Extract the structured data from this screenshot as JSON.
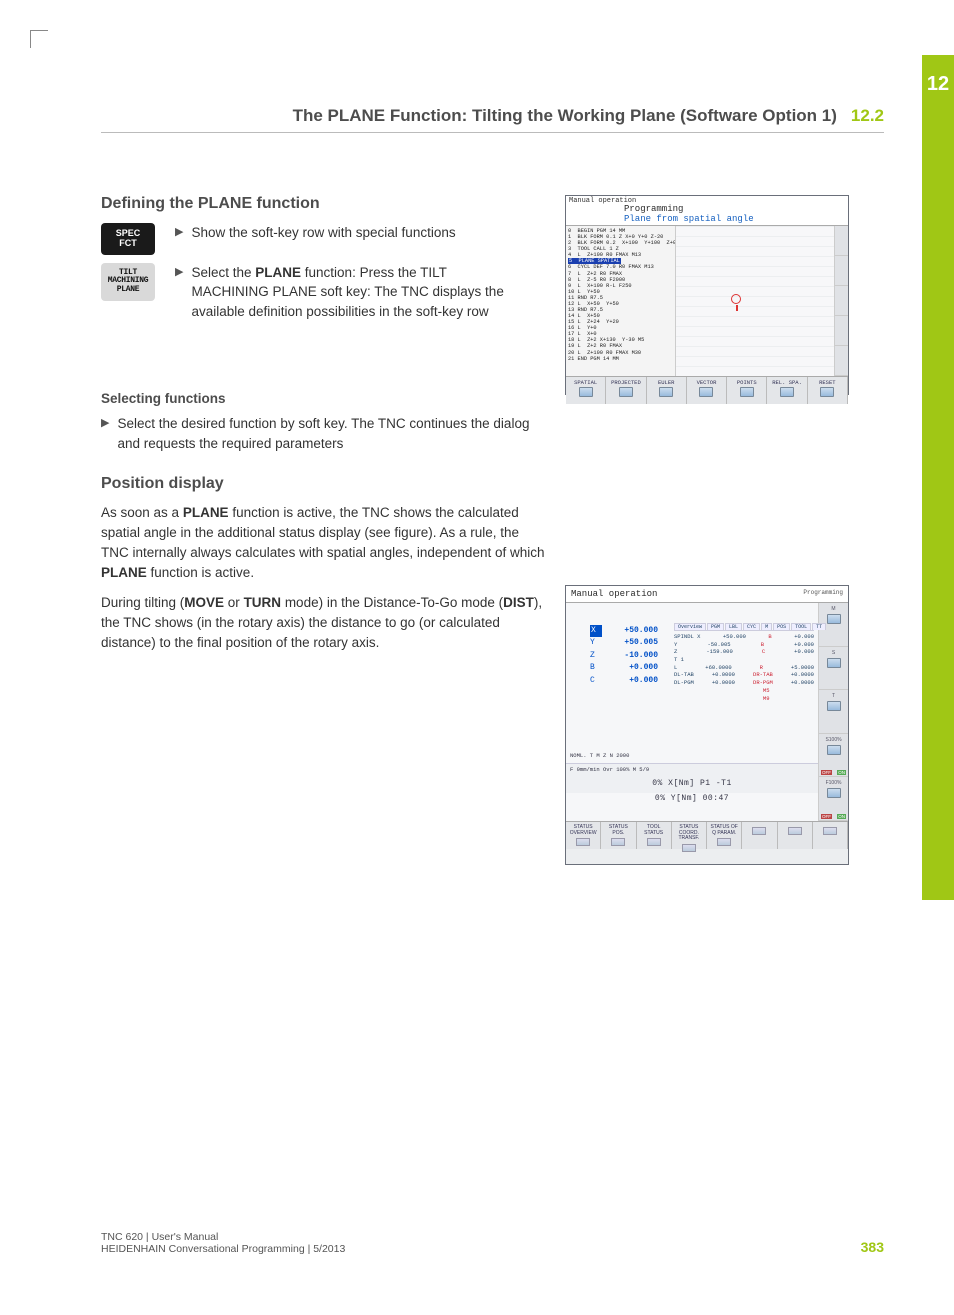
{
  "chapter_number": "12",
  "header_title": "The PLANE Function: Tilting the Working Plane (Software Option 1)",
  "header_section": "12.2",
  "section_defining": "Defining the PLANE function",
  "key_spec": "SPEC\nFCT",
  "key_tilt": "TILT\nMACHINING\nPLANE",
  "bullet_1": "Show the soft-key row with special functions",
  "bullet_2_pre": "Select the ",
  "bullet_2_b": "PLANE",
  "bullet_2_post": " function: Press the TILT MACHINING PLANE soft key: The TNC displays the available definition possibilities in the soft-key row",
  "subhead_selecting": "Selecting functions",
  "selecting_text": "Select the desired function by soft key. The TNC continues the dialog and requests the required parameters",
  "section_position": "Position display",
  "pos_p1_a": "As soon as a ",
  "pos_p1_b1": "PLANE",
  "pos_p1_c": " function is active, the TNC shows the calculated spatial angle in the additional status display (see figure). As a rule, the TNC internally always calculates with spatial angles, independent of which ",
  "pos_p1_b2": "PLANE",
  "pos_p1_d": " function is active.",
  "pos_p2_a": "During tilting (",
  "pos_p2_b1": "MOVE",
  "pos_p2_b": " or ",
  "pos_p2_b2": "TURN",
  "pos_p2_c": " mode) in the Distance-To-Go mode (",
  "pos_p2_b3": "DIST",
  "pos_p2_d": "), the TNC shows (in the rotary axis) the distance to go (or calculated distance) to the final position of the rotary axis.",
  "ss1": {
    "manual": "Manual operation",
    "prog": "Programming",
    "sub": "Plane from spatial angle",
    "code": "0  BEGIN PGM 14 MM\n1  BLK FORM 0.1 Z X+0 Y+0 Z-20\n2  BLK FORM 0.2  X+100  Y+100  Z+0\n3  TOOL CALL 1 Z\n4  L  Z+100 R0 FMAX M13\n",
    "code_hl": "5  PLANE SPATIAL",
    "code2": "6  CYCL DEF 7.0 R0 FMAX M13\n7  L  Z+2 R0 FMAX\n8  L  Z-5 R0 F2000\n9  L  X+100 R-L F250\n10 L  Y+50\n11 RND R7.5\n12 L  X+50  Y+50\n13 RND R7.5\n14 L  X+50\n15 L  Z+24  Y+20\n16 L  Y+0\n17 L  X+0\n18 L  Z+2 X+130  Y-30 M5\n19 L  Z+2 R0 FMAX\n20 L  Z+100 R0 FMAX M30\n21 END PGM 14 MM",
    "softkeys": [
      "SPATIAL",
      "PROJECTED",
      "EULER",
      "VECTOR",
      "POINTS",
      "REL. SPA.",
      "RESET"
    ]
  },
  "ss2": {
    "title": "Manual operation",
    "right": "Programming",
    "axes": [
      {
        "l": "X",
        "v": "+50.000",
        "hl": true
      },
      {
        "l": "Y",
        "v": "+50.005",
        "hl": false
      },
      {
        "l": "Z",
        "v": "-10.000",
        "hl": false
      },
      {
        "l": "B",
        "v": "+0.000",
        "hl": false
      },
      {
        "l": "C",
        "v": "+0.000",
        "hl": false
      }
    ],
    "tabs": [
      "Overview",
      "PGM",
      "LBL",
      "CYC",
      "M",
      "POS",
      "TOOL",
      "TT"
    ],
    "inforows": [
      [
        "SPINDL  X",
        "+50.000",
        "B",
        "+0.000"
      ],
      [
        "        Y",
        "-50.005",
        "B",
        "+0.000"
      ],
      [
        "        Z",
        "-159.000",
        "C",
        "+0.000"
      ],
      [
        "T    1",
        "",
        "",
        ""
      ],
      [
        "L",
        "+60.0000",
        "R",
        "+5.0000"
      ],
      [
        "DL-TAB",
        "+0.0000",
        "DR-TAB",
        "+0.0000"
      ],
      [
        "DL-PGM",
        "+0.0000",
        "DR-PGM",
        "+0.0000"
      ],
      [
        "",
        "",
        "M5",
        ""
      ],
      [
        "",
        "",
        "M9",
        ""
      ]
    ],
    "nom_line": "NOML.       T     M  Z  N  2000",
    "strip_line": "F   0mm/min   Ovr  100%   M 5/9",
    "big1": "0%  X[Nm]  P1   -T1",
    "big2": "0%  Y[Nm]  00:47",
    "side": [
      {
        "t": "M"
      },
      {
        "t": "S"
      },
      {
        "t": "T"
      },
      {
        "t": "S100%",
        "off": "OFF",
        "on": "ON"
      },
      {
        "t": "F100%",
        "off": "OFF",
        "on": "ON"
      }
    ],
    "softkeys": [
      "STATUS\nOVERVIEW",
      "STATUS\nPOS.",
      "TOOL\nSTATUS",
      "STATUS\nCOORD.\nTRANSF.",
      "STATUS OF\nQ PARAM.",
      "",
      "",
      ""
    ]
  },
  "footer_l1": "TNC 620 | User's Manual",
  "footer_l2": "HEIDENHAIN Conversational Programming | 5/2013",
  "page_number": "383"
}
